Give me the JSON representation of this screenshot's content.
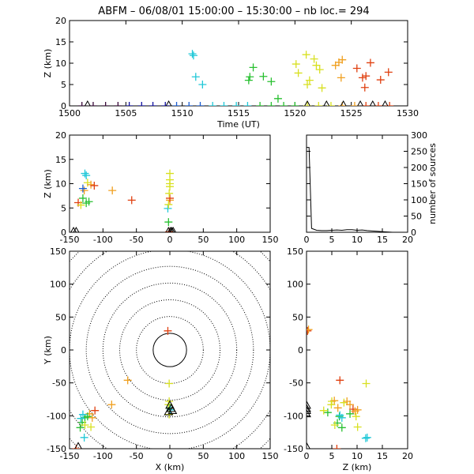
{
  "figure_title": "ABFM – 06/08/01 15:00:00 – 15:30:00 – nb loc.=     294",
  "colors": {
    "axis": "#000000",
    "time_bands": [
      "#3a0a3a",
      "#1010a0",
      "#1a5cd0",
      "#20c8d8",
      "#28c030",
      "#d8e020",
      "#f0a020",
      "#e04010"
    ]
  },
  "chart_data": [
    {
      "panel": "time-height",
      "type": "scatter",
      "title": "ABFM – 06/08/01 15:00:00 – 15:30:00 – nb loc.=     294",
      "xlabel": "Time (UT)",
      "ylabel": "Z (km)",
      "xlim": [
        1500,
        1530
      ],
      "ylim": [
        0,
        20
      ],
      "xticks": [
        "1500",
        "1505",
        "1510",
        "1515",
        "1520",
        "1525",
        "1530"
      ],
      "yticks": [
        "0",
        "5",
        "10",
        "15",
        "20"
      ],
      "points": [
        {
          "x": 1510.9,
          "y": 12.2,
          "c": 3
        },
        {
          "x": 1511.0,
          "y": 11.8,
          "c": 3
        },
        {
          "x": 1511.2,
          "y": 6.8,
          "c": 3
        },
        {
          "x": 1511.8,
          "y": 5.0,
          "c": 3
        },
        {
          "x": 1515.9,
          "y": 6.0,
          "c": 4
        },
        {
          "x": 1516.0,
          "y": 6.8,
          "c": 4
        },
        {
          "x": 1516.3,
          "y": 9.0,
          "c": 4
        },
        {
          "x": 1517.2,
          "y": 6.9,
          "c": 4
        },
        {
          "x": 1517.9,
          "y": 5.7,
          "c": 4
        },
        {
          "x": 1518.5,
          "y": 1.7,
          "c": 4
        },
        {
          "x": 1520.1,
          "y": 9.8,
          "c": 5
        },
        {
          "x": 1520.3,
          "y": 7.7,
          "c": 5
        },
        {
          "x": 1521.0,
          "y": 12.0,
          "c": 5
        },
        {
          "x": 1521.1,
          "y": 5.0,
          "c": 5
        },
        {
          "x": 1521.3,
          "y": 6.0,
          "c": 5
        },
        {
          "x": 1521.7,
          "y": 11.0,
          "c": 5
        },
        {
          "x": 1521.9,
          "y": 9.5,
          "c": 5
        },
        {
          "x": 1522.2,
          "y": 8.5,
          "c": 5
        },
        {
          "x": 1522.4,
          "y": 4.2,
          "c": 5
        },
        {
          "x": 1523.6,
          "y": 9.5,
          "c": 6
        },
        {
          "x": 1524.2,
          "y": 10.8,
          "c": 6
        },
        {
          "x": 1524.1,
          "y": 6.6,
          "c": 6
        },
        {
          "x": 1523.9,
          "y": 10.2,
          "c": 6
        },
        {
          "x": 1525.5,
          "y": 8.8,
          "c": 7
        },
        {
          "x": 1526.0,
          "y": 6.6,
          "c": 7
        },
        {
          "x": 1526.2,
          "y": 4.3,
          "c": 7
        },
        {
          "x": 1526.3,
          "y": 7.0,
          "c": 7
        },
        {
          "x": 1526.7,
          "y": 10.1,
          "c": 7
        },
        {
          "x": 1527.6,
          "y": 6.1,
          "c": 7
        },
        {
          "x": 1528.3,
          "y": 7.9,
          "c": 7
        },
        {
          "x": 1501.1,
          "y": 0,
          "c": 0
        },
        {
          "x": 1502.1,
          "y": 0,
          "c": 0
        },
        {
          "x": 1503.2,
          "y": 0,
          "c": 0
        },
        {
          "x": 1504.3,
          "y": 0,
          "c": 0
        },
        {
          "x": 1505.3,
          "y": 0,
          "c": 1
        },
        {
          "x": 1506.4,
          "y": 0,
          "c": 1
        },
        {
          "x": 1507.4,
          "y": 0,
          "c": 1
        },
        {
          "x": 1508.5,
          "y": 0,
          "c": 1
        },
        {
          "x": 1509.5,
          "y": 0,
          "c": 2
        },
        {
          "x": 1510.6,
          "y": 0,
          "c": 2
        },
        {
          "x": 1511.6,
          "y": 0,
          "c": 2
        },
        {
          "x": 1512.7,
          "y": 0,
          "c": 3
        },
        {
          "x": 1513.7,
          "y": 0,
          "c": 3
        },
        {
          "x": 1514.8,
          "y": 0,
          "c": 3
        },
        {
          "x": 1515.8,
          "y": 0,
          "c": 3
        },
        {
          "x": 1516.9,
          "y": 0,
          "c": 4
        },
        {
          "x": 1517.9,
          "y": 0,
          "c": 4
        },
        {
          "x": 1519.0,
          "y": 0,
          "c": 4
        },
        {
          "x": 1520.0,
          "y": 0,
          "c": 4
        },
        {
          "x": 1521.1,
          "y": 0,
          "c": 5
        },
        {
          "x": 1522.1,
          "y": 0,
          "c": 5
        },
        {
          "x": 1523.2,
          "y": 0,
          "c": 5
        },
        {
          "x": 1524.2,
          "y": 0,
          "c": 6
        },
        {
          "x": 1525.3,
          "y": 0,
          "c": 6
        },
        {
          "x": 1526.3,
          "y": 0,
          "c": 7
        },
        {
          "x": 1527.4,
          "y": 0,
          "c": 7
        },
        {
          "x": 1528.4,
          "y": 0,
          "c": 7
        }
      ],
      "triangles": [
        {
          "x": 1501.6,
          "y": 0
        },
        {
          "x": 1508.8,
          "y": 0
        },
        {
          "x": 1521.1,
          "y": 0
        },
        {
          "x": 1522.8,
          "y": 0
        },
        {
          "x": 1524.3,
          "y": 0
        },
        {
          "x": 1525.8,
          "y": 0
        },
        {
          "x": 1526.9,
          "y": 0
        },
        {
          "x": 1528.0,
          "y": 0
        }
      ]
    },
    {
      "panel": "x-z",
      "type": "scatter",
      "xlabel": "",
      "ylabel": "Z (km)",
      "xlim": [
        -150,
        150
      ],
      "ylim": [
        0,
        20
      ],
      "xticks": [
        "-150",
        "-100",
        "-50",
        "0",
        "50",
        "100",
        "150"
      ],
      "yticks": [
        "0",
        "5",
        "10",
        "15",
        "20"
      ],
      "points": [
        {
          "x": -137,
          "y": 6.1,
          "c": 7
        },
        {
          "x": -133,
          "y": 5.6,
          "c": 5
        },
        {
          "x": -130,
          "y": 7.0,
          "c": 4
        },
        {
          "x": -128,
          "y": 8.6,
          "c": 6
        },
        {
          "x": -127,
          "y": 12.1,
          "c": 3
        },
        {
          "x": -125,
          "y": 11.7,
          "c": 3
        },
        {
          "x": -123,
          "y": 10.2,
          "c": 5
        },
        {
          "x": -121,
          "y": 6.3,
          "c": 4
        },
        {
          "x": -118,
          "y": 9.8,
          "c": 6
        },
        {
          "x": -113,
          "y": 9.6,
          "c": 7
        },
        {
          "x": -125,
          "y": 6.0,
          "c": 4
        },
        {
          "x": -130,
          "y": 9.0,
          "c": 2
        },
        {
          "x": -86,
          "y": 8.6,
          "c": 6
        },
        {
          "x": -57,
          "y": 6.6,
          "c": 7
        },
        {
          "x": -1,
          "y": 0.1,
          "c": 7
        },
        {
          "x": -2,
          "y": 2.1,
          "c": 4
        },
        {
          "x": -3,
          "y": 4.9,
          "c": 3
        },
        {
          "x": -2,
          "y": 5.7,
          "c": 5
        },
        {
          "x": 0,
          "y": 6.6,
          "c": 6
        },
        {
          "x": 0,
          "y": 7.0,
          "c": 7
        },
        {
          "x": -1,
          "y": 8.0,
          "c": 5
        },
        {
          "x": 0,
          "y": 9.4,
          "c": 5
        },
        {
          "x": 0,
          "y": 10.0,
          "c": 5
        },
        {
          "x": 0,
          "y": 10.8,
          "c": 5
        },
        {
          "x": 0,
          "y": 12.1,
          "c": 5
        }
      ],
      "triangles": [
        {
          "x": -144,
          "y": 0
        },
        {
          "x": -140,
          "y": 0
        },
        {
          "x": -2,
          "y": 0
        },
        {
          "x": 1,
          "y": 0
        },
        {
          "x": 3,
          "y": 0
        },
        {
          "x": 5,
          "y": 0
        }
      ]
    },
    {
      "panel": "altitude-histogram",
      "type": "line",
      "xlabel": "",
      "ylabel": "number of sources",
      "xlim": [
        0,
        20
      ],
      "ylim": [
        0,
        300
      ],
      "xticks": [
        "0",
        "5",
        "10",
        "15",
        "20"
      ],
      "yticks": [
        "0",
        "50",
        "100",
        "150",
        "200",
        "250",
        "300"
      ],
      "x": [
        0,
        0.5,
        1,
        2,
        3,
        4,
        5,
        6,
        7,
        8,
        9,
        10,
        11,
        12,
        13,
        14,
        15,
        16,
        17,
        18,
        19,
        20
      ],
      "values": [
        262,
        262,
        12,
        6,
        5,
        5,
        6,
        7,
        6,
        8,
        8,
        6,
        7,
        5,
        4,
        3,
        2,
        1,
        0,
        0,
        0,
        0
      ]
    },
    {
      "panel": "plan-view",
      "type": "scatter",
      "xlabel": "X (km)",
      "ylabel": "Y (km)",
      "xlim": [
        -150,
        150
      ],
      "ylim": [
        -150,
        150
      ],
      "xticks": [
        "-150",
        "-100",
        "-50",
        "0",
        "50",
        "100",
        "150"
      ],
      "yticks": [
        "-150",
        "-100",
        "-50",
        "0",
        "50",
        "100",
        "150"
      ],
      "range_rings_km": [
        25,
        50,
        75,
        100,
        125,
        150,
        175,
        200
      ],
      "points": [
        {
          "x": -3,
          "y": 29,
          "c": 7
        },
        {
          "x": -63,
          "y": -46,
          "c": 6
        },
        {
          "x": -1,
          "y": -51,
          "c": 5
        },
        {
          "x": -87,
          "y": -83,
          "c": 6
        },
        {
          "x": -1,
          "y": -78,
          "c": 5
        },
        {
          "x": -2,
          "y": -83,
          "c": 5
        },
        {
          "x": 0,
          "y": -88,
          "c": 4
        },
        {
          "x": 1,
          "y": -91,
          "c": 3
        },
        {
          "x": -1,
          "y": -98,
          "c": 5
        },
        {
          "x": -112,
          "y": -92,
          "c": 7
        },
        {
          "x": -116,
          "y": -103,
          "c": 6
        },
        {
          "x": -120,
          "y": -97,
          "c": 6
        },
        {
          "x": -123,
          "y": -101,
          "c": 4
        },
        {
          "x": -127,
          "y": -103,
          "c": 4
        },
        {
          "x": -130,
          "y": -98,
          "c": 3
        },
        {
          "x": -131,
          "y": -110,
          "c": 4
        },
        {
          "x": -127,
          "y": -114,
          "c": 5
        },
        {
          "x": -133,
          "y": -104,
          "c": 3
        },
        {
          "x": -128,
          "y": -133,
          "c": 3
        },
        {
          "x": -118,
          "y": -117,
          "c": 5
        },
        {
          "x": -140,
          "y": -150,
          "c": 7
        },
        {
          "x": -134,
          "y": -118,
          "c": 4
        }
      ],
      "triangles": [
        {
          "x": 0,
          "y": -85
        },
        {
          "x": 2,
          "y": -90
        },
        {
          "x": 4,
          "y": -93
        },
        {
          "x": -2,
          "y": -95
        },
        {
          "x": -137,
          "y": -148
        }
      ]
    },
    {
      "panel": "z-y",
      "type": "scatter",
      "xlabel": "Z (km)",
      "ylabel": "",
      "xlim": [
        0,
        20
      ],
      "ylim": [
        -150,
        150
      ],
      "xticks": [
        "0",
        "5",
        "10",
        "15",
        "20"
      ],
      "yticks": [
        "-150",
        "-100",
        "-50",
        "0",
        "50",
        "100",
        "150"
      ],
      "points": [
        {
          "x": 0.2,
          "y": 29,
          "c": 7
        },
        {
          "x": 0.4,
          "y": 31,
          "c": 6
        },
        {
          "x": 6.6,
          "y": -46,
          "c": 7
        },
        {
          "x": 11.8,
          "y": -51,
          "c": 5
        },
        {
          "x": 8.6,
          "y": -83,
          "c": 6
        },
        {
          "x": 5.0,
          "y": -78,
          "c": 5
        },
        {
          "x": 5.5,
          "y": -77,
          "c": 6
        },
        {
          "x": 4.9,
          "y": -83,
          "c": 5
        },
        {
          "x": 6.2,
          "y": -88,
          "c": 6
        },
        {
          "x": 7.4,
          "y": -80,
          "c": 5
        },
        {
          "x": 8.0,
          "y": -78,
          "c": 6
        },
        {
          "x": 9.2,
          "y": -90,
          "c": 7
        },
        {
          "x": 9.6,
          "y": -93,
          "c": 6
        },
        {
          "x": 10.1,
          "y": -91,
          "c": 6
        },
        {
          "x": 9.8,
          "y": -101,
          "c": 5
        },
        {
          "x": 8.6,
          "y": -97,
          "c": 4
        },
        {
          "x": 6.5,
          "y": -101,
          "c": 4
        },
        {
          "x": 6.1,
          "y": -111,
          "c": 4
        },
        {
          "x": 7.0,
          "y": -103,
          "c": 3
        },
        {
          "x": 6.6,
          "y": -99,
          "c": 3
        },
        {
          "x": 5.6,
          "y": -114,
          "c": 5
        },
        {
          "x": 10.1,
          "y": -117,
          "c": 5
        },
        {
          "x": 12.0,
          "y": -133,
          "c": 3
        },
        {
          "x": 11.7,
          "y": -134,
          "c": 3
        },
        {
          "x": 6.0,
          "y": -150,
          "c": 7
        },
        {
          "x": 7.0,
          "y": -118,
          "c": 4
        },
        {
          "x": 4.2,
          "y": -95,
          "c": 4
        },
        {
          "x": 3.4,
          "y": -92,
          "c": 5
        }
      ],
      "triangles": [
        {
          "x": 0,
          "y": -85
        },
        {
          "x": 0,
          "y": -90
        },
        {
          "x": 0,
          "y": -93
        },
        {
          "x": 0,
          "y": -98
        },
        {
          "x": 0,
          "y": -148
        }
      ]
    }
  ]
}
